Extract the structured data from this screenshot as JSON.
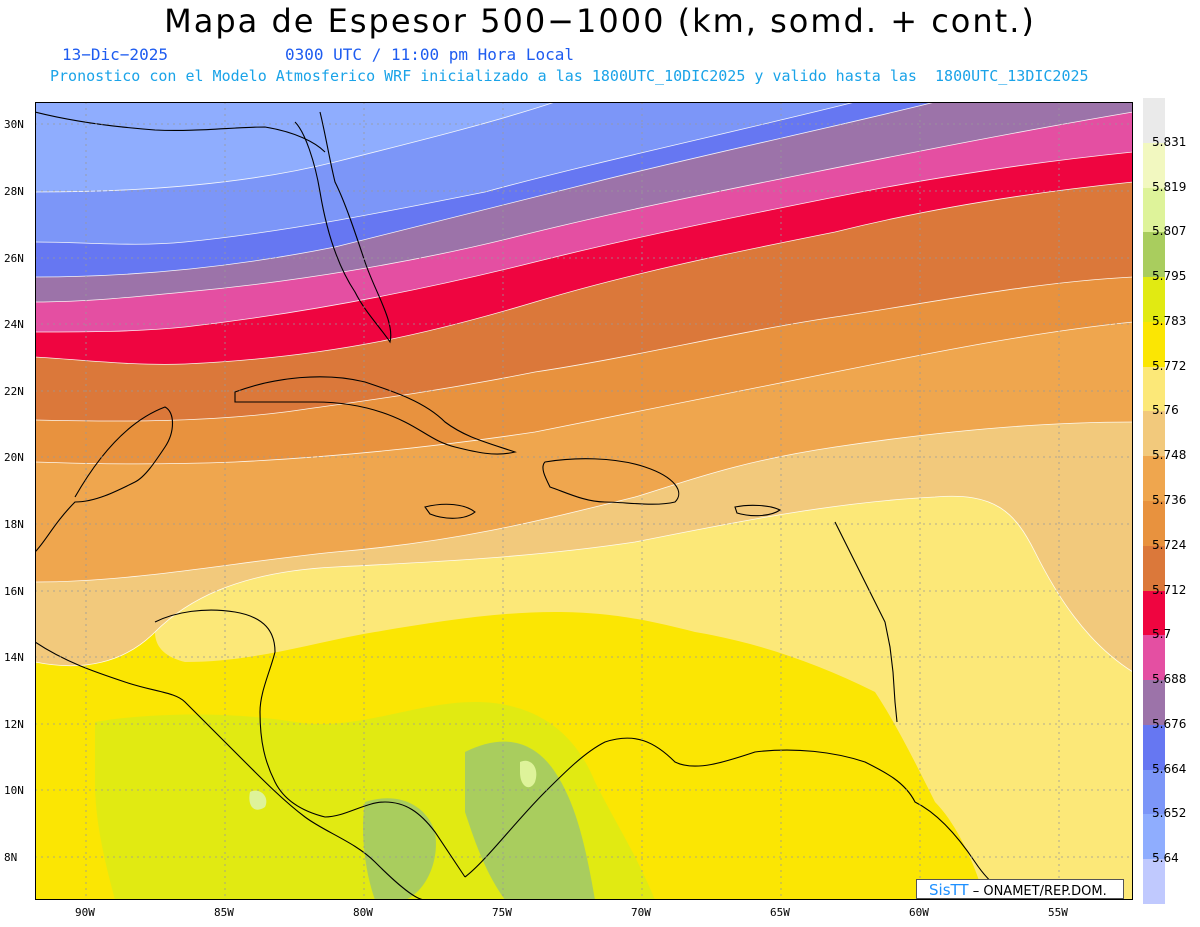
{
  "header": {
    "title": "Mapa de Espesor 500−1000 (km, somd. + cont.)",
    "date": "13−Dic−2025",
    "time": "0300 UTC / 11:00 pm Hora Local",
    "description": "Pronostico con el Modelo Atmosferico WRF inicializado a las 1800UTC_10DIC2025 y valido hasta las  1800UTC_13DIC2025"
  },
  "axes": {
    "lat_labels": [
      "30N",
      "28N",
      "26N",
      "24N",
      "22N",
      "20N",
      "18N",
      "16N",
      "14N",
      "12N",
      "10N",
      "8N"
    ],
    "lon_labels": [
      "90W",
      "85W",
      "80W",
      "75W",
      "70W",
      "65W",
      "60W",
      "55W"
    ]
  },
  "legend": {
    "levels": [
      "5.64",
      "5.652",
      "5.664",
      "5.676",
      "5.688",
      "5.7",
      "5.712",
      "5.724",
      "5.736",
      "5.748",
      "5.76",
      "5.772",
      "5.783",
      "5.795",
      "5.807",
      "5.819",
      "5.831"
    ],
    "colors": [
      "#c0c9fe",
      "#8fadfe",
      "#7c96f8",
      "#6677f2",
      "#9c73a9",
      "#e44fa2",
      "#ef0540",
      "#db783a",
      "#e8923e",
      "#efa64e",
      "#f2c97c",
      "#fce878",
      "#fbe603",
      "#e1ea12",
      "#a9cd5e",
      "#def39a",
      "#f2f8c0",
      "#eaeaea"
    ]
  },
  "credit": {
    "brand": "SisTT",
    "text": "– ONAMET/REP.DOM."
  }
}
